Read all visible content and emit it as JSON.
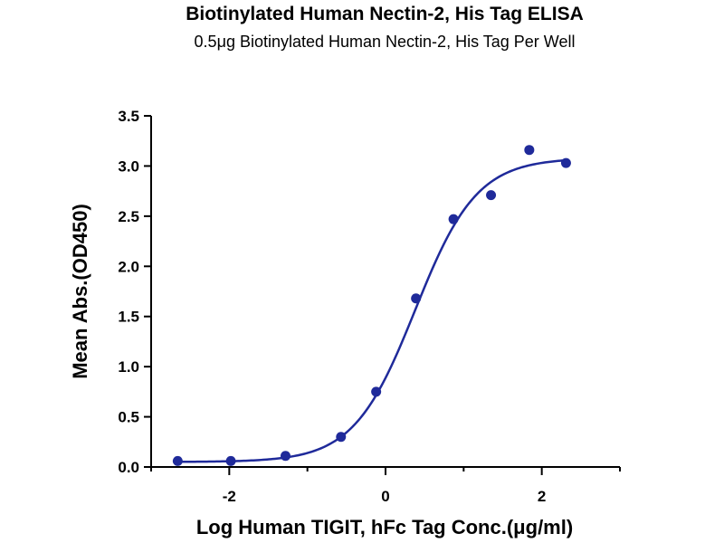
{
  "chart_data": {
    "type": "scatter",
    "title": "Biotinylated Human Nectin-2, His Tag ELISA",
    "subtitle": "0.5μg Biotinylated Human Nectin-2, His Tag Per Well",
    "xlabel": "Log Human TIGIT, hFc Tag Conc.(μg/ml)",
    "ylabel": "Mean Abs.(OD450)",
    "xlim": [
      -3.0,
      3.0
    ],
    "ylim": [
      0.0,
      3.5
    ],
    "x_ticks": [
      -2,
      0,
      2
    ],
    "x_tick_labels": [
      "-2",
      "0",
      "2"
    ],
    "y_ticks": [
      0.0,
      0.5,
      1.0,
      1.5,
      2.0,
      2.5,
      3.0,
      3.5
    ],
    "y_tick_labels": [
      "0.0",
      "0.5",
      "1.0",
      "1.5",
      "2.0",
      "2.5",
      "3.0",
      "3.5"
    ],
    "series": [
      {
        "x": [
          -2.66,
          -1.98,
          -1.28,
          -0.57,
          -0.12,
          0.39,
          0.87,
          1.35,
          1.84,
          2.31
        ],
        "y": [
          0.06,
          0.06,
          0.11,
          0.3,
          0.75,
          1.68,
          2.47,
          2.71,
          3.16,
          3.03
        ],
        "fit": {
          "model": "4-parameter logistic",
          "bottom": 0.05,
          "top": 3.08,
          "log_ec50": 0.38,
          "hill_slope": 1.1,
          "x_range": [
            -2.66,
            2.31
          ]
        }
      }
    ],
    "colors": {
      "series": "#1f2a9a",
      "axes": "#000000"
    },
    "grid": false,
    "legend": "none"
  }
}
